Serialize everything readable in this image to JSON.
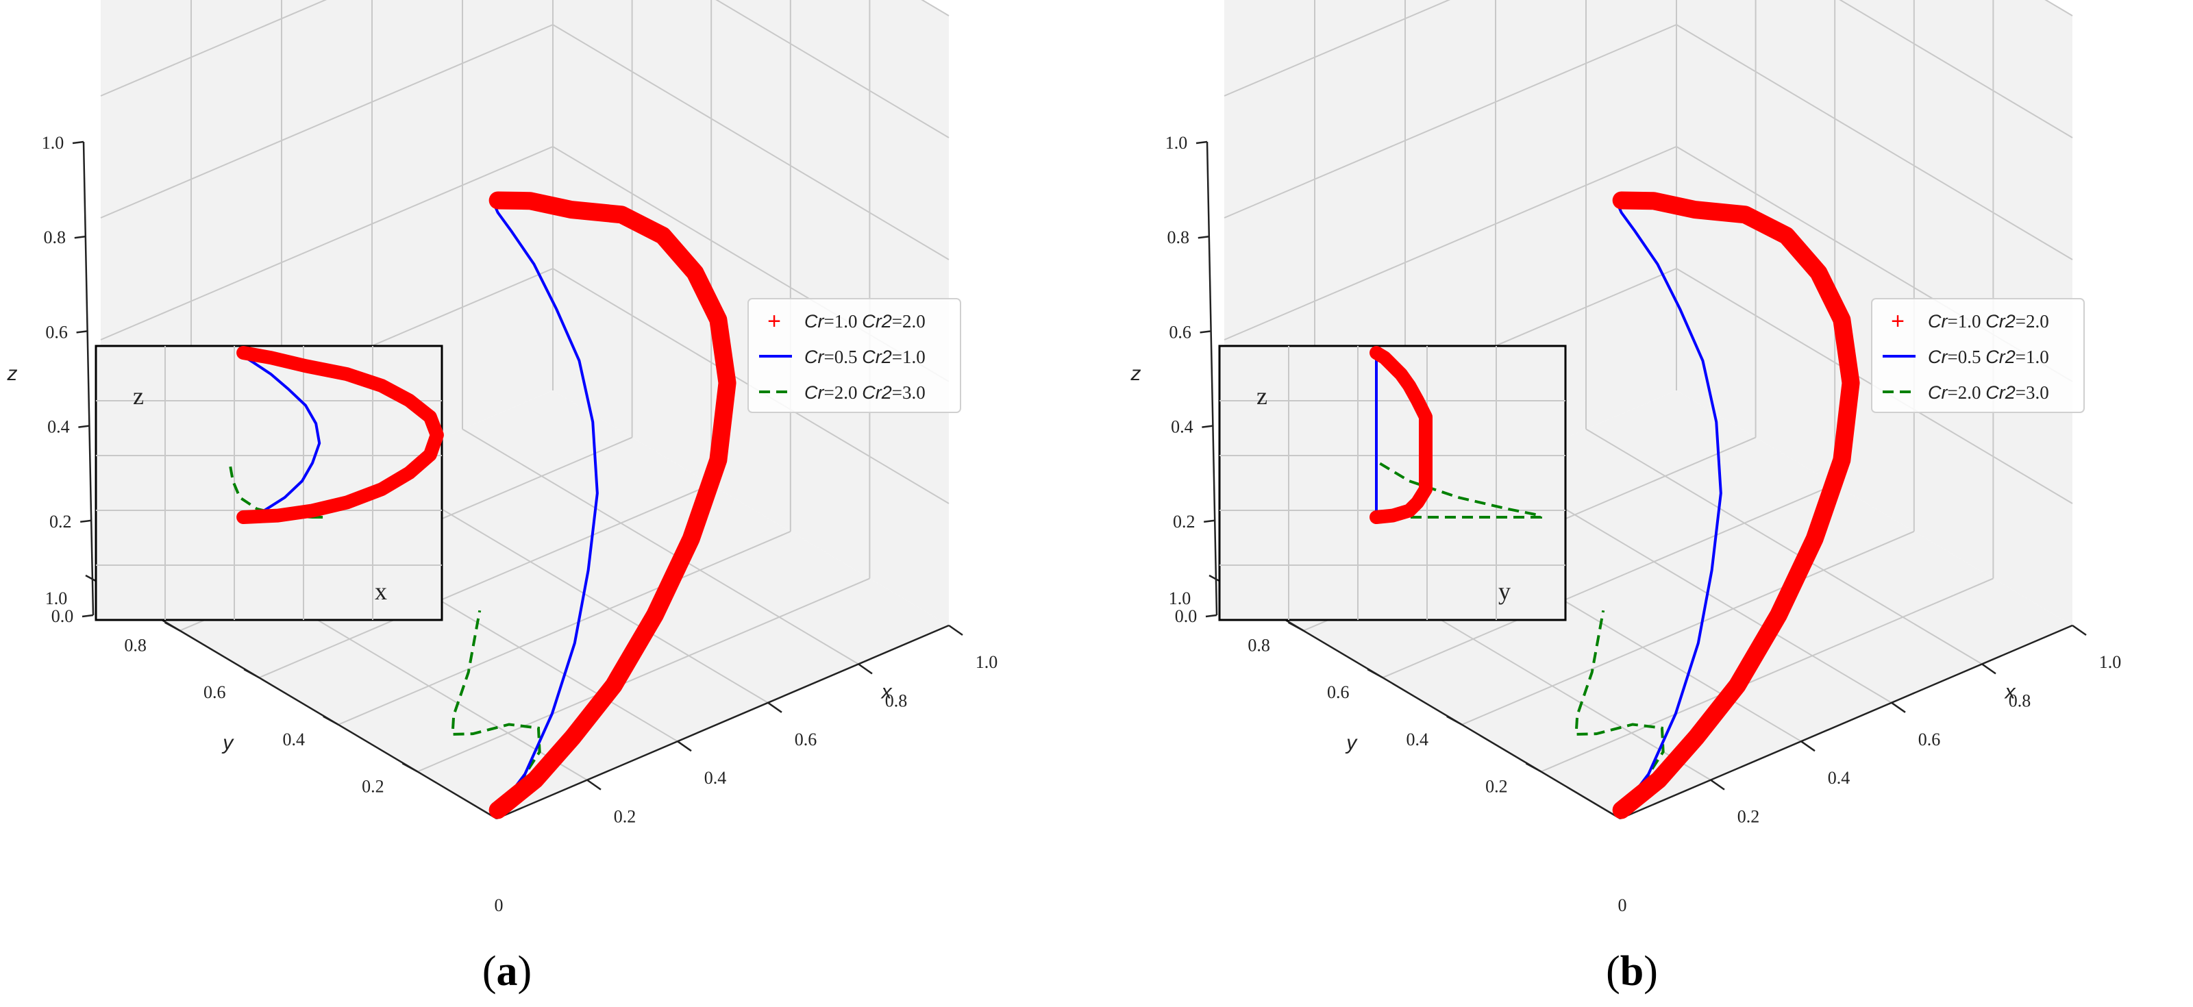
{
  "chart_data": [
    {
      "type": "line",
      "panel_label": "a",
      "xlabel": "x",
      "ylabel": "y",
      "zlabel": "z",
      "x_ticks": [
        "0.2",
        "0.4",
        "0.6",
        "0.8",
        "1.0"
      ],
      "y_ticks": [
        "0.2",
        "0.4",
        "0.6",
        "0.8",
        "1.0"
      ],
      "z_ticks": [
        "0.0",
        "0.2",
        "0.4",
        "0.6",
        "0.8",
        "1.0"
      ],
      "extra_tick": "0",
      "xlim": [
        0,
        1
      ],
      "ylim": [
        0,
        1
      ],
      "zlim": [
        0,
        1
      ],
      "grid": true,
      "legend_position": "right",
      "series": [
        {
          "name_parts": [
            "Cr",
            "=1.0 ",
            "Cr2",
            "=2.0"
          ],
          "style": "red-plus",
          "x": [
            0.02,
            0.12,
            0.22,
            0.32,
            0.42,
            0.5,
            0.56,
            0.58,
            0.56,
            0.5,
            0.42,
            0.32,
            0.2,
            0.1,
            0.02
          ],
          "y": [
            0.02,
            0.04,
            0.06,
            0.07,
            0.08,
            0.08,
            0.08,
            0.08,
            0.08,
            0.07,
            0.06,
            0.05,
            0.04,
            0.03,
            0.02
          ],
          "z": [
            0.0,
            0.01,
            0.04,
            0.09,
            0.17,
            0.27,
            0.38,
            0.5,
            0.61,
            0.71,
            0.8,
            0.87,
            0.92,
            0.97,
            1.0
          ]
        },
        {
          "name_parts": [
            "Cr",
            "=0.5 ",
            "Cr2",
            "=1.0"
          ],
          "style": "blue-solid",
          "x": [
            0.02,
            0.08,
            0.14,
            0.19,
            0.22,
            0.24,
            0.23,
            0.2,
            0.15,
            0.1,
            0.05,
            0.02,
            0.01
          ],
          "y": [
            0.02,
            0.02,
            0.02,
            0.02,
            0.02,
            0.02,
            0.02,
            0.02,
            0.02,
            0.02,
            0.02,
            0.02,
            0.02
          ],
          "z": [
            0.0,
            0.04,
            0.12,
            0.22,
            0.33,
            0.45,
            0.57,
            0.68,
            0.78,
            0.87,
            0.94,
            0.98,
            1.0
          ]
        },
        {
          "name_parts": [
            "Cr",
            "=2.0 ",
            "Cr2",
            "=3.0"
          ],
          "style": "green-dashed",
          "x": [
            0.02,
            0.1,
            0.2,
            0.25,
            0.22,
            0.14,
            0.06,
            0.01,
            -0.01,
            -0.02
          ],
          "y": [
            0.02,
            0.06,
            0.12,
            0.18,
            0.22,
            0.22,
            0.18,
            0.12,
            0.06,
            0.02
          ],
          "z": [
            0.0,
            0.0,
            0.0,
            0.0,
            0.0,
            0.01,
            0.05,
            0.12,
            0.22,
            0.34
          ]
        }
      ],
      "inset": {
        "horizontal_label": "x",
        "vertical_label": "z"
      }
    },
    {
      "type": "line",
      "panel_label": "b",
      "xlabel": "x",
      "ylabel": "y",
      "zlabel": "z",
      "x_ticks": [
        "0.2",
        "0.4",
        "0.6",
        "0.8",
        "1.0"
      ],
      "y_ticks": [
        "0.2",
        "0.4",
        "0.6",
        "0.8",
        "1.0"
      ],
      "z_ticks": [
        "0.0",
        "0.2",
        "0.4",
        "0.6",
        "0.8",
        "1.0"
      ],
      "extra_tick": "0",
      "xlim": [
        0,
        1
      ],
      "ylim": [
        0,
        1
      ],
      "zlim": [
        0,
        1
      ],
      "grid": true,
      "legend_position": "right",
      "series": [
        {
          "name_parts": [
            "Cr",
            "=1.0 ",
            "Cr2",
            "=2.0"
          ],
          "style": "red-plus",
          "x": [
            0.02,
            0.12,
            0.22,
            0.32,
            0.42,
            0.5,
            0.56,
            0.58,
            0.56,
            0.5,
            0.42,
            0.32,
            0.2,
            0.1,
            0.02
          ],
          "y": [
            0.02,
            0.04,
            0.06,
            0.07,
            0.08,
            0.08,
            0.08,
            0.08,
            0.08,
            0.07,
            0.06,
            0.05,
            0.04,
            0.03,
            0.02
          ],
          "z": [
            0.0,
            0.01,
            0.04,
            0.09,
            0.17,
            0.27,
            0.38,
            0.5,
            0.61,
            0.71,
            0.8,
            0.87,
            0.92,
            0.97,
            1.0
          ]
        },
        {
          "name_parts": [
            "Cr",
            "=0.5 ",
            "Cr2",
            "=1.0"
          ],
          "style": "blue-solid",
          "x": [
            0.02,
            0.08,
            0.14,
            0.19,
            0.22,
            0.24,
            0.23,
            0.2,
            0.15,
            0.1,
            0.05,
            0.02,
            0.01
          ],
          "y": [
            0.02,
            0.02,
            0.02,
            0.02,
            0.02,
            0.02,
            0.02,
            0.02,
            0.02,
            0.02,
            0.02,
            0.02,
            0.02
          ],
          "z": [
            0.0,
            0.04,
            0.12,
            0.22,
            0.33,
            0.45,
            0.57,
            0.68,
            0.78,
            0.87,
            0.94,
            0.98,
            1.0
          ]
        },
        {
          "name_parts": [
            "Cr",
            "=2.0 ",
            "Cr2",
            "=3.0"
          ],
          "style": "green-dashed",
          "x": [
            0.02,
            0.1,
            0.2,
            0.25,
            0.22,
            0.14,
            0.06,
            0.01,
            -0.01,
            -0.02
          ],
          "y": [
            0.02,
            0.06,
            0.12,
            0.18,
            0.22,
            0.22,
            0.18,
            0.12,
            0.06,
            0.02
          ],
          "z": [
            0.0,
            0.0,
            0.0,
            0.0,
            0.0,
            0.01,
            0.05,
            0.12,
            0.22,
            0.34
          ]
        }
      ],
      "inset": {
        "horizontal_label": "y",
        "vertical_label": "z"
      }
    }
  ],
  "captions": {
    "a": "a",
    "b": "b"
  },
  "colors": {
    "red": "#ff0000",
    "blue": "#0000ff",
    "green": "#008000",
    "pane": "#f2f2f2",
    "grid": "#c8c8c8"
  }
}
